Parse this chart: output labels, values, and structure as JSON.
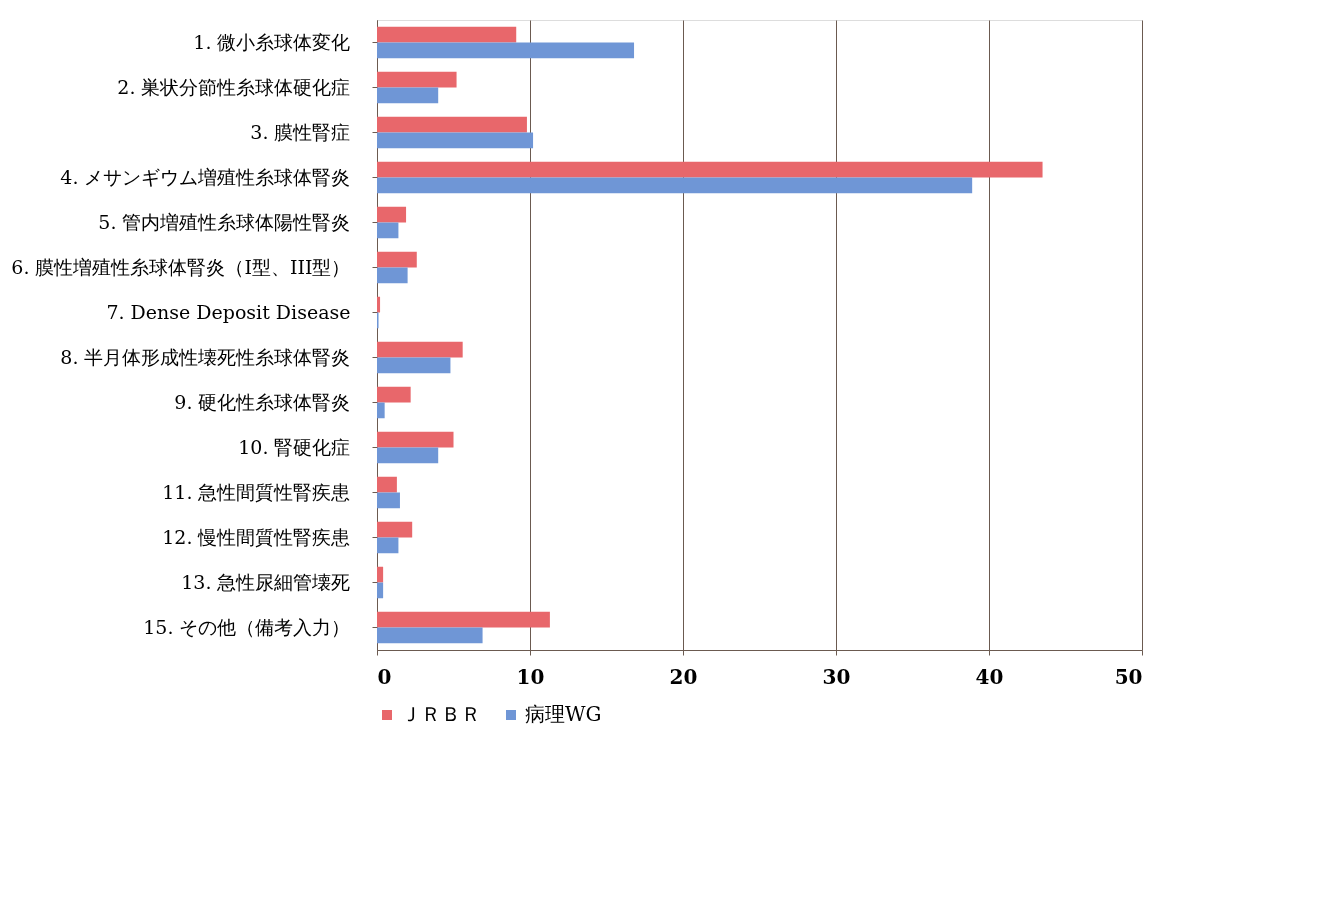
{
  "chart_data": {
    "type": "bar",
    "orientation": "horizontal",
    "categories": [
      "1. 微小糸球体変化",
      "2. 巣状分節性糸球体硬化症",
      "3. 膜性腎症",
      "4. メサンギウム増殖性糸球体腎炎",
      "5. 管内増殖性糸球体陽性腎炎",
      "6. 膜性増殖性糸球体腎炎（I型、III型）",
      "7. Dense Deposit Disease",
      "8. 半月体形成性壊死性糸球体腎炎",
      "9. 硬化性糸球体腎炎",
      "10. 腎硬化症",
      "11. 急性間質性腎疾患",
      "12. 慢性間質性腎疾患",
      "13. 急性尿細管壊死",
      "15. その他（備考入力）"
    ],
    "series": [
      {
        "name": "ＪＲＢＲ",
        "color": "#e8676b",
        "values": [
          9.1,
          5.2,
          9.8,
          43.5,
          1.9,
          2.6,
          0.2,
          5.6,
          2.2,
          5.0,
          1.3,
          2.3,
          0.4,
          11.3
        ]
      },
      {
        "name": "病理WG",
        "color": "#6f96d6",
        "values": [
          16.8,
          4.0,
          10.2,
          38.9,
          1.4,
          2.0,
          0.1,
          4.8,
          0.5,
          4.0,
          1.5,
          1.4,
          0.4,
          6.9
        ]
      }
    ],
    "xlim": [
      0,
      50
    ],
    "xticks": [
      0,
      10,
      20,
      30,
      40,
      50
    ],
    "grid": "x",
    "legend": "bottom"
  }
}
